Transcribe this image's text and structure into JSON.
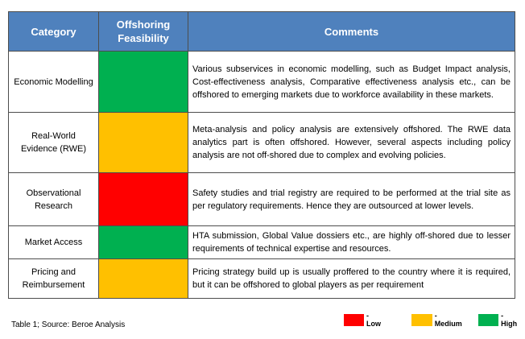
{
  "header": {
    "columns": [
      "Category",
      "Offshoring Feasibility",
      "Comments"
    ]
  },
  "table": {
    "rows": [
      {
        "category": "Economic Modelling",
        "color": "#00b050",
        "comments": "Various subservices in economic modelling, such as Budget Impact analysis, Cost-effectiveness analysis, Comparative effectiveness analysis etc., can be offshored to emerging markets due to workforce availability in these markets."
      },
      {
        "category": "Real-World Evidence (RWE)",
        "color": "#ffc000",
        "comments": "Meta-analysis and policy analysis are extensively offshored. The RWE data analytics part is often offshored. However, several aspects including policy analysis are not off-shored due to complex and evolving policies."
      },
      {
        "category": "Observational Research",
        "color": "#ff0000",
        "comments": "Safety studies and trial registry are required to be performed at the trial site as per regulatory requirements. Hence they are outsourced at lower levels."
      },
      {
        "category": "Market Access",
        "color": "#00b050",
        "comments": "HTA submission, Global Value dossiers etc., are highly off-shored due to lesser requirements of technical expertise and resources."
      },
      {
        "category": "Pricing and Reimbursement",
        "color": "#ffc000",
        "comments": "Pricing strategy build up is usually proffered to the country where it is required, but it can be offshored to global players as per requirement"
      }
    ]
  },
  "caption": "Table 1; Source: Beroe Analysis",
  "legend": [
    {
      "label": "- Low",
      "color": "#ff0000"
    },
    {
      "label": "- Medium",
      "color": "#ffc000"
    },
    {
      "label": "- High",
      "color": "#00b050"
    }
  ]
}
